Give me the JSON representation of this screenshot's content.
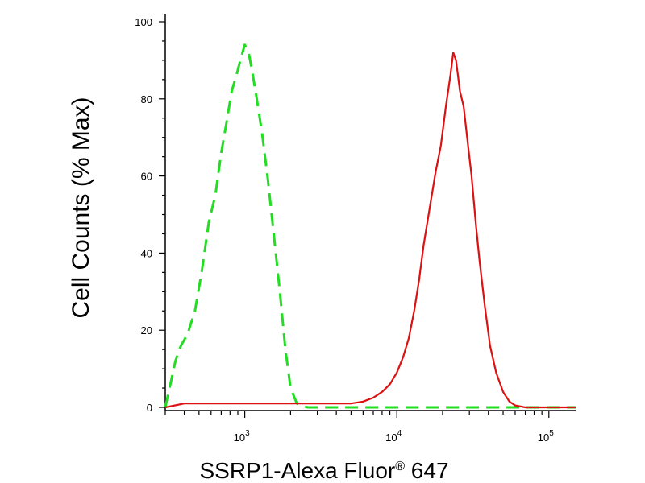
{
  "chart_data": {
    "type": "line",
    "title": "",
    "xlabel": "SSRP1-Alexa Fluor",
    "xlabel_superscript": "®",
    "xlabel_suffix": " 647",
    "ylabel": "Cell Counts (% Max)",
    "x_scale": "log",
    "xlim": [
      300,
      150000
    ],
    "ylim": [
      0,
      100
    ],
    "y_ticks": [
      {
        "value": 0,
        "label": "0"
      },
      {
        "value": 20,
        "label": "20"
      },
      {
        "value": 40,
        "label": "40"
      },
      {
        "value": 60,
        "label": "60"
      },
      {
        "value": 80,
        "label": "80"
      },
      {
        "value": 100,
        "label": "100"
      }
    ],
    "x_ticks": [
      {
        "value": 1000,
        "base": "10",
        "exp": "3"
      },
      {
        "value": 10000,
        "base": "10",
        "exp": "4"
      },
      {
        "value": 100000,
        "base": "10",
        "exp": "5"
      }
    ],
    "grid": false,
    "legend": "none",
    "series": [
      {
        "color": "#22dd22",
        "style": "dashed",
        "x": [
          300,
          320,
          350,
          380,
          420,
          470,
          520,
          580,
          640,
          700,
          760,
          820,
          880,
          950,
          1000,
          1060,
          1120,
          1200,
          1300,
          1420,
          1550,
          1700,
          1850,
          2000,
          2200,
          2400,
          2600,
          3000,
          5000,
          10000,
          30000,
          100000,
          150000
        ],
        "values": [
          0,
          5,
          12,
          16,
          19,
          25,
          35,
          48,
          55,
          66,
          74,
          82,
          86,
          91,
          94,
          92,
          87,
          80,
          71,
          59,
          45,
          30,
          15,
          5,
          1,
          0.3,
          0,
          0,
          0,
          0,
          0,
          0,
          0
        ]
      },
      {
        "color": "#dd1111",
        "style": "solid",
        "x": [
          300,
          400,
          600,
          1000,
          1500,
          2000,
          3000,
          5000,
          6000,
          7000,
          8000,
          9000,
          10000,
          11000,
          12000,
          13000,
          14000,
          15000,
          16500,
          18000,
          19500,
          21000,
          22500,
          23500,
          24500,
          26000,
          27500,
          29000,
          31000,
          33000,
          35000,
          38000,
          41000,
          45000,
          50000,
          55000,
          60000,
          70000,
          80000,
          100000,
          150000
        ],
        "values": [
          0,
          1,
          1,
          1,
          1,
          1,
          1,
          1,
          1.5,
          2.5,
          4,
          6,
          9,
          13,
          18,
          25,
          33,
          42,
          52,
          61,
          68,
          78,
          86,
          92,
          90,
          82,
          78,
          70,
          60,
          48,
          38,
          26,
          16,
          9,
          4,
          1.5,
          0.5,
          0,
          0,
          0,
          0
        ]
      }
    ]
  }
}
